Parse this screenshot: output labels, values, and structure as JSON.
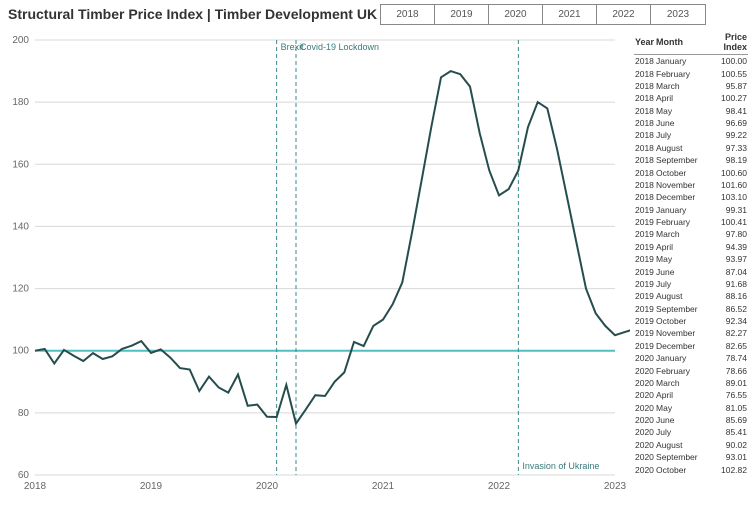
{
  "title": "Structural Timber Price Index | Timber Development UK",
  "year_tabs": [
    "2018",
    "2019",
    "2020",
    "2021",
    "2022",
    "2023"
  ],
  "chart": {
    "type": "line",
    "ylim": [
      60,
      200
    ],
    "yticks": [
      60,
      80,
      100,
      120,
      140,
      160,
      180,
      200
    ],
    "x_years": [
      2018,
      2019,
      2020,
      2021,
      2022,
      2023
    ],
    "background_color": "#ffffff",
    "grid_color": "#d8d8d8",
    "series_color": "#264d4d",
    "baseline_100_color": "#4fbfbf",
    "event_line_color": "#3a8a8a",
    "axis_font_size": 10,
    "events": [
      {
        "label": "Brexit",
        "x": 2020.083,
        "label_y": "top"
      },
      {
        "label": "Covid-19 Lockdown",
        "x": 2020.25,
        "label_y": "top"
      },
      {
        "label": "Invasion of Ukraine",
        "x": 2022.167,
        "label_y": "bottom"
      }
    ],
    "series": [
      {
        "y": 2018,
        "m": 1,
        "v": 100.0
      },
      {
        "y": 2018,
        "m": 2,
        "v": 100.55
      },
      {
        "y": 2018,
        "m": 3,
        "v": 95.87
      },
      {
        "y": 2018,
        "m": 4,
        "v": 100.27
      },
      {
        "y": 2018,
        "m": 5,
        "v": 98.41
      },
      {
        "y": 2018,
        "m": 6,
        "v": 96.69
      },
      {
        "y": 2018,
        "m": 7,
        "v": 99.22
      },
      {
        "y": 2018,
        "m": 8,
        "v": 97.33
      },
      {
        "y": 2018,
        "m": 9,
        "v": 98.19
      },
      {
        "y": 2018,
        "m": 10,
        "v": 100.6
      },
      {
        "y": 2018,
        "m": 11,
        "v": 101.6
      },
      {
        "y": 2018,
        "m": 12,
        "v": 103.1
      },
      {
        "y": 2019,
        "m": 1,
        "v": 99.31
      },
      {
        "y": 2019,
        "m": 2,
        "v": 100.41
      },
      {
        "y": 2019,
        "m": 3,
        "v": 97.8
      },
      {
        "y": 2019,
        "m": 4,
        "v": 94.39
      },
      {
        "y": 2019,
        "m": 5,
        "v": 93.97
      },
      {
        "y": 2019,
        "m": 6,
        "v": 87.04
      },
      {
        "y": 2019,
        "m": 7,
        "v": 91.68
      },
      {
        "y": 2019,
        "m": 8,
        "v": 88.16
      },
      {
        "y": 2019,
        "m": 9,
        "v": 86.52
      },
      {
        "y": 2019,
        "m": 10,
        "v": 92.34
      },
      {
        "y": 2019,
        "m": 11,
        "v": 82.27
      },
      {
        "y": 2019,
        "m": 12,
        "v": 82.65
      },
      {
        "y": 2020,
        "m": 1,
        "v": 78.74
      },
      {
        "y": 2020,
        "m": 2,
        "v": 78.66
      },
      {
        "y": 2020,
        "m": 3,
        "v": 89.01
      },
      {
        "y": 2020,
        "m": 4,
        "v": 76.55
      },
      {
        "y": 2020,
        "m": 5,
        "v": 81.05
      },
      {
        "y": 2020,
        "m": 6,
        "v": 85.69
      },
      {
        "y": 2020,
        "m": 7,
        "v": 85.41
      },
      {
        "y": 2020,
        "m": 8,
        "v": 90.02
      },
      {
        "y": 2020,
        "m": 9,
        "v": 93.01
      },
      {
        "y": 2020,
        "m": 10,
        "v": 102.82
      },
      {
        "y": 2020,
        "m": 11,
        "v": 101.5
      },
      {
        "y": 2020,
        "m": 12,
        "v": 108.0
      },
      {
        "y": 2021,
        "m": 1,
        "v": 110.0
      },
      {
        "y": 2021,
        "m": 2,
        "v": 115.0
      },
      {
        "y": 2021,
        "m": 3,
        "v": 122.0
      },
      {
        "y": 2021,
        "m": 4,
        "v": 138.0
      },
      {
        "y": 2021,
        "m": 5,
        "v": 155.0
      },
      {
        "y": 2021,
        "m": 6,
        "v": 172.0
      },
      {
        "y": 2021,
        "m": 7,
        "v": 188.0
      },
      {
        "y": 2021,
        "m": 8,
        "v": 190.0
      },
      {
        "y": 2021,
        "m": 9,
        "v": 189.0
      },
      {
        "y": 2021,
        "m": 10,
        "v": 185.0
      },
      {
        "y": 2021,
        "m": 11,
        "v": 170.0
      },
      {
        "y": 2021,
        "m": 12,
        "v": 158.0
      },
      {
        "y": 2022,
        "m": 1,
        "v": 150.0
      },
      {
        "y": 2022,
        "m": 2,
        "v": 152.0
      },
      {
        "y": 2022,
        "m": 3,
        "v": 158.0
      },
      {
        "y": 2022,
        "m": 4,
        "v": 172.0
      },
      {
        "y": 2022,
        "m": 5,
        "v": 180.0
      },
      {
        "y": 2022,
        "m": 6,
        "v": 178.0
      },
      {
        "y": 2022,
        "m": 7,
        "v": 165.0
      },
      {
        "y": 2022,
        "m": 8,
        "v": 150.0
      },
      {
        "y": 2022,
        "m": 9,
        "v": 135.0
      },
      {
        "y": 2022,
        "m": 10,
        "v": 120.0
      },
      {
        "y": 2022,
        "m": 11,
        "v": 112.0
      },
      {
        "y": 2022,
        "m": 12,
        "v": 108.0
      },
      {
        "y": 2023,
        "m": 1,
        "v": 105.0
      },
      {
        "y": 2023,
        "m": 2,
        "v": 106.0
      },
      {
        "y": 2023,
        "m": 3,
        "v": 107.0
      }
    ]
  },
  "table": {
    "headers": [
      "Year",
      "Month",
      "Price Index"
    ],
    "rows": [
      [
        "2018",
        "January",
        "100.00"
      ],
      [
        "2018",
        "February",
        "100.55"
      ],
      [
        "2018",
        "March",
        "95.87"
      ],
      [
        "2018",
        "April",
        "100.27"
      ],
      [
        "2018",
        "May",
        "98.41"
      ],
      [
        "2018",
        "June",
        "96.69"
      ],
      [
        "2018",
        "July",
        "99.22"
      ],
      [
        "2018",
        "August",
        "97.33"
      ],
      [
        "2018",
        "September",
        "98.19"
      ],
      [
        "2018",
        "October",
        "100.60"
      ],
      [
        "2018",
        "November",
        "101.60"
      ],
      [
        "2018",
        "December",
        "103.10"
      ],
      [
        "2019",
        "January",
        "99.31"
      ],
      [
        "2019",
        "February",
        "100.41"
      ],
      [
        "2019",
        "March",
        "97.80"
      ],
      [
        "2019",
        "April",
        "94.39"
      ],
      [
        "2019",
        "May",
        "93.97"
      ],
      [
        "2019",
        "June",
        "87.04"
      ],
      [
        "2019",
        "July",
        "91.68"
      ],
      [
        "2019",
        "August",
        "88.16"
      ],
      [
        "2019",
        "September",
        "86.52"
      ],
      [
        "2019",
        "October",
        "92.34"
      ],
      [
        "2019",
        "November",
        "82.27"
      ],
      [
        "2019",
        "December",
        "82.65"
      ],
      [
        "2020",
        "January",
        "78.74"
      ],
      [
        "2020",
        "February",
        "78.66"
      ],
      [
        "2020",
        "March",
        "89.01"
      ],
      [
        "2020",
        "April",
        "76.55"
      ],
      [
        "2020",
        "May",
        "81.05"
      ],
      [
        "2020",
        "June",
        "85.69"
      ],
      [
        "2020",
        "July",
        "85.41"
      ],
      [
        "2020",
        "August",
        "90.02"
      ],
      [
        "2020",
        "September",
        "93.01"
      ],
      [
        "2020",
        "October",
        "102.82"
      ]
    ]
  }
}
